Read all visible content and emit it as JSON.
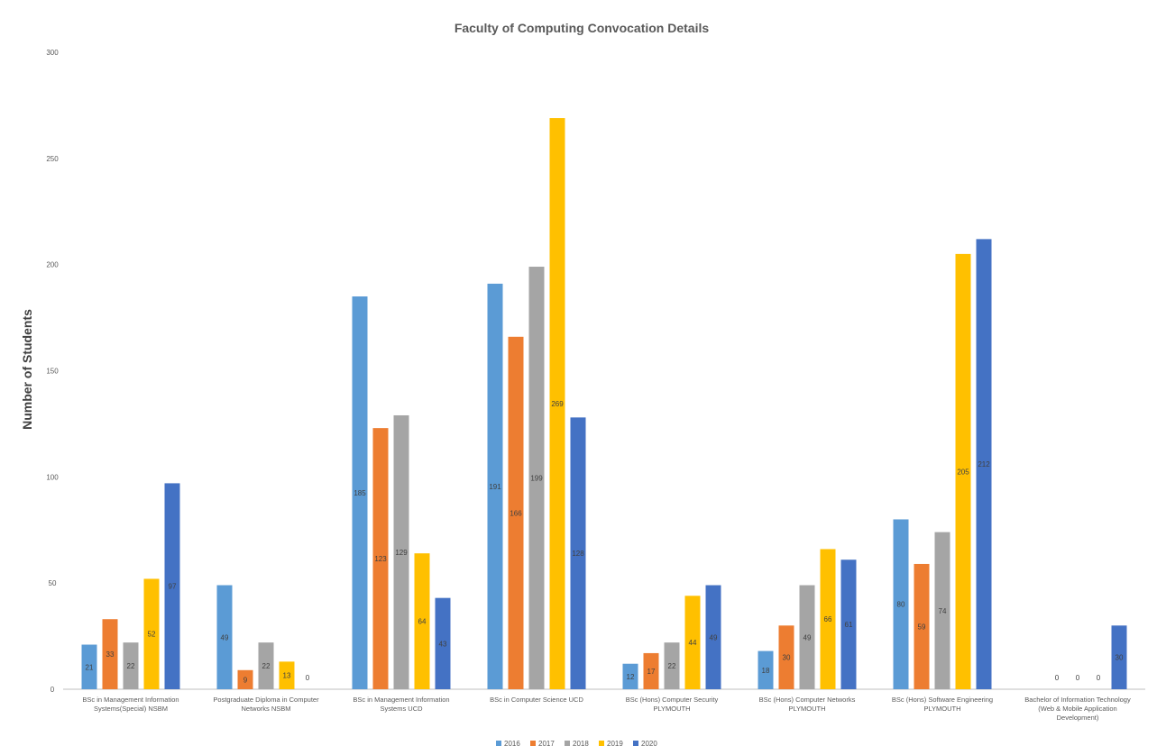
{
  "chart_data": {
    "type": "bar",
    "title": "Faculty of Computing Convocation Details",
    "ylabel": "Number of Students",
    "xlabel": "",
    "ylim": [
      0,
      300
    ],
    "yticks": [
      0,
      50,
      100,
      150,
      200,
      250,
      300
    ],
    "grid": false,
    "legend_position": "bottom",
    "categories": [
      "BSc in Management Information Systems(Special) NSBM",
      "Postgraduate Diploma in Computer Networks NSBM",
      "BSc in Management Information Systems UCD",
      "BSc in Computer Science UCD",
      "BSc (Hons) Computer Security PLYMOUTH",
      "BSc (Hons) Computer Networks PLYMOUTH",
      "BSc (Hons) Software Engineering PLYMOUTH",
      "Bachelor of Information Technology (Web & Mobile Application Development)"
    ],
    "series": [
      {
        "name": "2016",
        "color": "#5B9BD5",
        "values": [
          21,
          49,
          185,
          191,
          12,
          18,
          80,
          null
        ]
      },
      {
        "name": "2017",
        "color": "#ED7D31",
        "values": [
          33,
          9,
          123,
          166,
          17,
          30,
          59,
          0
        ]
      },
      {
        "name": "2018",
        "color": "#A5A5A5",
        "values": [
          22,
          22,
          129,
          199,
          22,
          49,
          74,
          0
        ]
      },
      {
        "name": "2019",
        "color": "#FFC000",
        "values": [
          52,
          13,
          64,
          269,
          44,
          66,
          205,
          0
        ]
      },
      {
        "name": "2020",
        "color": "#4472C4",
        "values": [
          97,
          0,
          43,
          128,
          49,
          61,
          212,
          30
        ]
      }
    ]
  }
}
